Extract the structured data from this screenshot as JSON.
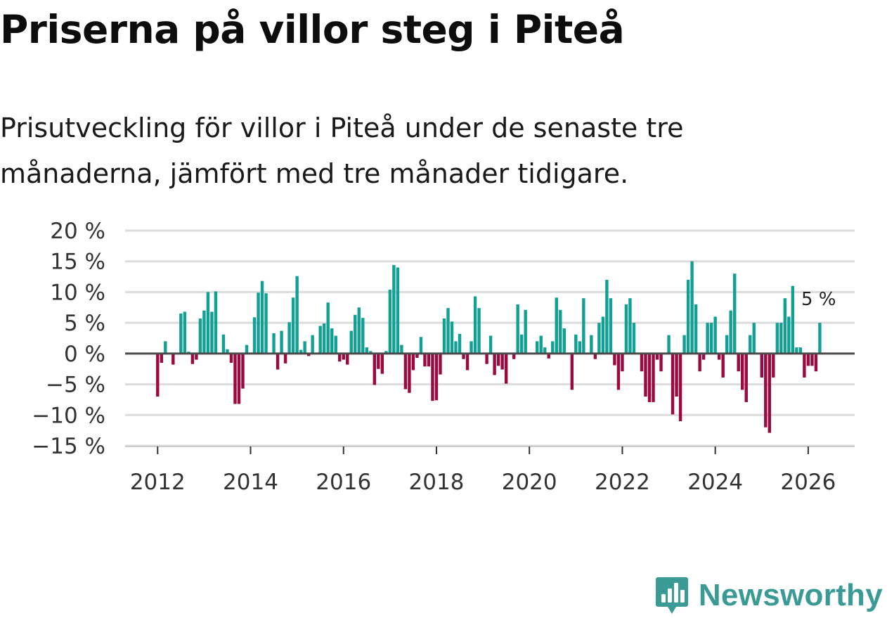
{
  "header": {
    "title": "Priserna på villor steg i Piteå",
    "subtitle": "Prisutveckling för villor i Piteå under de senaste tre månaderna, jämfört med tre månader tidigare."
  },
  "branding": {
    "name": "Newsworthy",
    "logo_icon": "bar-chart-pin-icon",
    "color": "#3a9b96"
  },
  "colors": {
    "positive": "#12a095",
    "negative": "#9b0941",
    "grid": "#dcdcdc",
    "zero_line": "#4a4a4a",
    "axis": "#cccccc"
  },
  "chart_data": {
    "type": "bar",
    "title": "Priserna på villor steg i Piteå",
    "subtitle": "Prisutveckling för villor i Piteå under de senaste tre månaderna, jämfört med tre månader tidigare.",
    "xlabel": "",
    "ylabel": "",
    "unit": "%",
    "ylim": [
      -15,
      20
    ],
    "y_ticks": [
      20,
      15,
      10,
      5,
      0,
      -5,
      -10,
      -15
    ],
    "y_tick_labels": [
      "20 %",
      "15 %",
      "10 %",
      "5 %",
      "0 %",
      "−5 %",
      "−10 %",
      "−15 %"
    ],
    "x_range": [
      2011.3,
      2027.0
    ],
    "x_ticks": [
      2012,
      2014,
      2016,
      2018,
      2020,
      2022,
      2024,
      2026
    ],
    "x_tick_labels": [
      "2012",
      "2014",
      "2016",
      "2018",
      "2020",
      "2022",
      "2024",
      "2026"
    ],
    "last_value_label": "5 %",
    "grid": true,
    "series": [
      {
        "name": "Prisutveckling",
        "start": "2012-01",
        "frequency": "monthly",
        "values": [
          -7,
          -1.5,
          2,
          0,
          -1.8,
          0,
          6.5,
          6.8,
          0.3,
          -1.7,
          -1,
          5.7,
          7,
          10,
          6.8,
          10.1,
          0,
          3.1,
          0.7,
          -1.5,
          -8.2,
          -8.2,
          -5.7,
          1.4,
          0,
          5.9,
          9.9,
          11.8,
          9.8,
          0,
          3.3,
          -2.6,
          3.7,
          -1.6,
          5.1,
          9.1,
          12.6,
          0.6,
          2,
          -0.4,
          3,
          0,
          4.5,
          4.9,
          8.3,
          4.1,
          2.9,
          -1.3,
          -1,
          -1.8,
          3.7,
          6.3,
          7.5,
          5.8,
          1,
          0.4,
          -5.1,
          -2.5,
          -3.3,
          0.4,
          10.4,
          14.4,
          14,
          1.4,
          -5.8,
          -6.4,
          -2.7,
          -0.7,
          2.7,
          -2.1,
          -2.1,
          -7.7,
          -7.6,
          -3.4,
          5.7,
          7.4,
          5.2,
          2,
          3.2,
          -0.9,
          -2.7,
          2,
          9.3,
          7.4,
          0,
          -1.7,
          2.9,
          -3.5,
          -2,
          -2.6,
          -4.9,
          0,
          -0.9,
          8,
          3.1,
          7.1,
          0,
          0,
          2,
          2.9,
          1,
          -0.8,
          2,
          9.1,
          7.1,
          4.1,
          0,
          -5.9,
          3.1,
          2,
          9,
          0,
          3,
          -0.9,
          5,
          6,
          12,
          9,
          -1.9,
          -5.9,
          -2.9,
          8,
          9,
          5,
          0,
          -2.9,
          -7,
          -7.9,
          -7.9,
          -1,
          -2.9,
          0,
          3,
          -9.9,
          -7,
          -11,
          3,
          12,
          15,
          8,
          -2.9,
          -1,
          5,
          5,
          6,
          -1,
          -3.9,
          3,
          7,
          13,
          -2.9,
          -5.9,
          -7.9,
          3,
          5,
          0,
          -3.9,
          -12,
          -12.9,
          -3.9,
          5,
          5,
          9,
          6,
          11,
          1,
          1,
          -3.9,
          -2,
          -2,
          -2.9,
          5
        ]
      }
    ]
  }
}
